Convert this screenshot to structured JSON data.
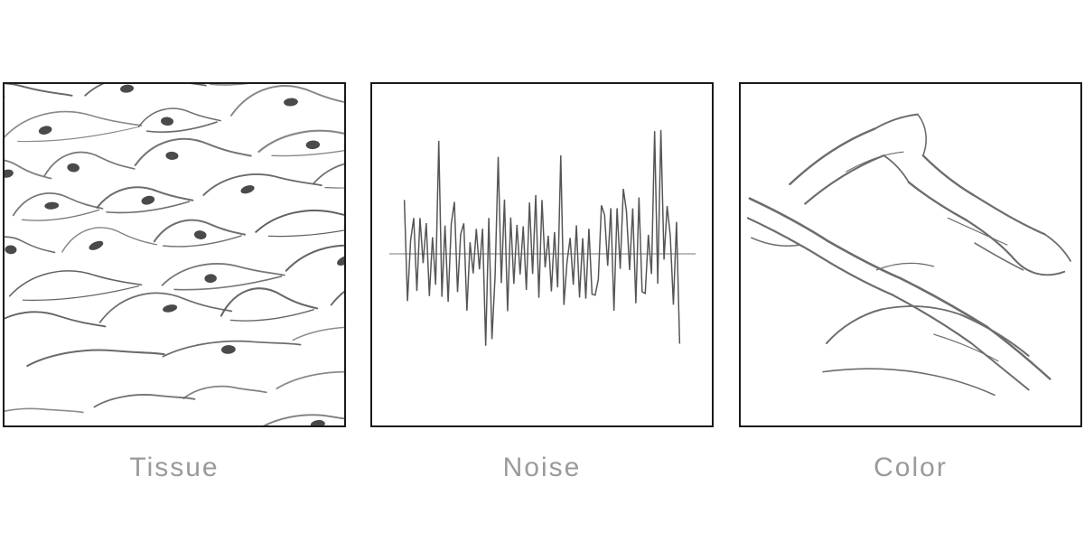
{
  "panels": [
    {
      "id": "tissue",
      "label": "Tissue"
    },
    {
      "id": "noise",
      "label": "Noise"
    },
    {
      "id": "color",
      "label": "Color"
    }
  ],
  "style": {
    "background": "#ffffff",
    "panel_border": "#1a1a1a",
    "sketch_stroke": "#5d5d5d",
    "nucleus_fill": "#4a4a4a",
    "baseline_stroke": "#777777",
    "waveform_stroke": "#555555",
    "label_color": "#9a9a9a"
  }
}
